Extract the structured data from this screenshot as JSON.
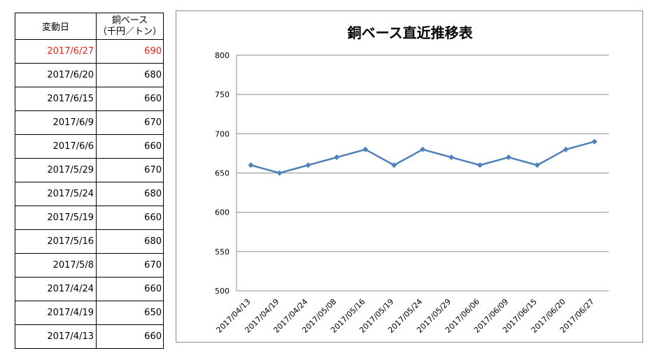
{
  "table": {
    "header_date": "変動日",
    "header_price_line1": "銅ベース",
    "header_price_line2": "（千円／トン）",
    "rows": [
      {
        "date": "2017/6/27",
        "price": "690"
      },
      {
        "date": "2017/6/20",
        "price": "680"
      },
      {
        "date": "2017/6/15",
        "price": "660"
      },
      {
        "date": "2017/6/9",
        "price": "670"
      },
      {
        "date": "2017/6/6",
        "price": "660"
      },
      {
        "date": "2017/5/29",
        "price": "670"
      },
      {
        "date": "2017/5/24",
        "price": "680"
      },
      {
        "date": "2017/5/19",
        "price": "660"
      },
      {
        "date": "2017/5/16",
        "price": "680"
      },
      {
        "date": "2017/5/8",
        "price": "670"
      },
      {
        "date": "2017/4/24",
        "price": "660"
      },
      {
        "date": "2017/4/19",
        "price": "650"
      },
      {
        "date": "2017/4/13",
        "price": "660"
      }
    ],
    "latest_color": "#e8231b"
  },
  "chart_data": {
    "type": "line",
    "title": "銅ベース直近推移表",
    "xlabel": "",
    "ylabel": "",
    "categories": [
      "2017/04/13",
      "2017/04/19",
      "2017/04/24",
      "2017/05/08",
      "2017/05/16",
      "2017/05/19",
      "2017/05/24",
      "2017/05/29",
      "2017/06/06",
      "2017/06/09",
      "2017/06/15",
      "2017/06/20",
      "2017/06/27"
    ],
    "series": [
      {
        "values": [
          660,
          650,
          660,
          670,
          680,
          660,
          680,
          670,
          660,
          670,
          660,
          680,
          690
        ],
        "color": "#4f81bd"
      }
    ],
    "ylim": [
      500,
      800
    ],
    "yticks": [
      500,
      550,
      600,
      650,
      700,
      750,
      800
    ],
    "grid": true,
    "legend": "none",
    "marker": "diamond"
  }
}
